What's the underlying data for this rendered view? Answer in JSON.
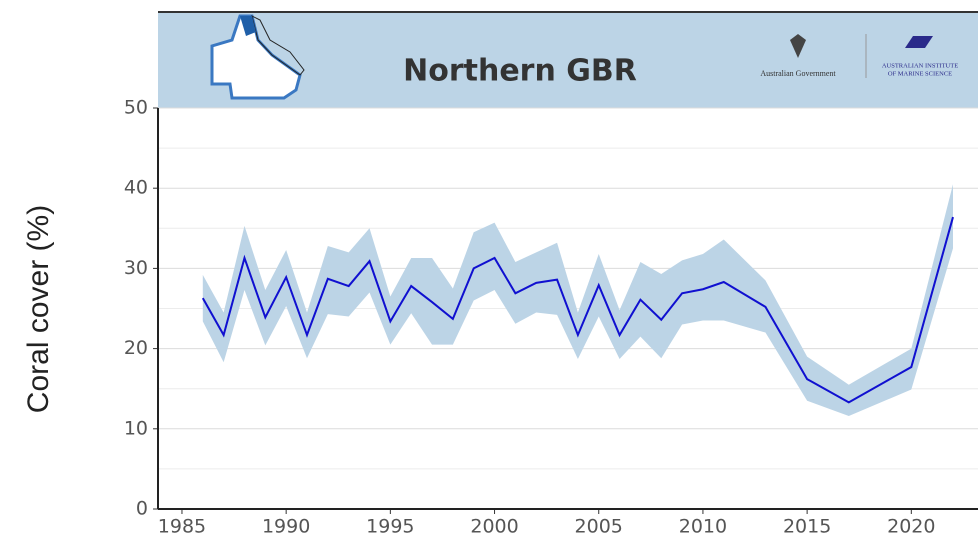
{
  "chart_data": {
    "type": "line",
    "title": "Northern GBR",
    "logos": [
      "Australian Government",
      "Australian Institute",
      "of Marine Science"
    ],
    "y_label": "Coral cover (%)",
    "x": [
      1986,
      1987,
      1988,
      1989,
      1990,
      1991,
      1992,
      1993,
      1994,
      1995,
      1996,
      1997,
      1998,
      1999,
      2000,
      2001,
      2002,
      2003,
      2004,
      2005,
      2006,
      2007,
      2008,
      2009,
      2010,
      2011,
      2013,
      2015,
      2017,
      2020,
      2022
    ],
    "series": [
      {
        "color": "#1010d0",
        "values": [
          26.3,
          21.7,
          31.3,
          23.9,
          28.9,
          21.7,
          28.7,
          27.8,
          30.9,
          23.4,
          27.8,
          25.8,
          23.7,
          30.0,
          31.3,
          26.9,
          28.2,
          28.6,
          21.7,
          27.9,
          21.7,
          26.1,
          23.6,
          26.9,
          27.4,
          28.3,
          25.2,
          16.2,
          13.3,
          17.7,
          36.4
        ],
        "upper": [
          29.2,
          24.5,
          35.3,
          27.3,
          32.3,
          24.5,
          32.8,
          32.0,
          35.0,
          26.5,
          31.3,
          31.3,
          27.5,
          34.5,
          35.7,
          30.8,
          32.0,
          33.2,
          24.5,
          31.8,
          24.8,
          30.8,
          29.3,
          31.0,
          31.8,
          33.6,
          28.5,
          19.0,
          15.5,
          20.0,
          40.5
        ],
        "lower": [
          23.4,
          18.3,
          27.3,
          20.4,
          25.3,
          18.8,
          24.3,
          24.0,
          27.0,
          20.5,
          24.4,
          20.5,
          20.5,
          26.0,
          27.3,
          23.1,
          24.5,
          24.2,
          18.7,
          24.0,
          18.7,
          21.5,
          18.8,
          23.0,
          23.5,
          23.5,
          22.0,
          13.5,
          11.6,
          14.9,
          32.5
        ],
        "band_color": "#bcd4e6"
      }
    ],
    "xlim": [
      1983.85,
      2023.2
    ],
    "xticks": [
      1985,
      1990,
      1995,
      2000,
      2005,
      2010,
      2015,
      2020
    ],
    "ylim": [
      0,
      50
    ],
    "yticks": [
      0,
      10,
      20,
      30,
      40,
      50
    ],
    "yticks_minor": [
      5,
      15,
      25,
      35,
      45
    ],
    "grid": true
  }
}
